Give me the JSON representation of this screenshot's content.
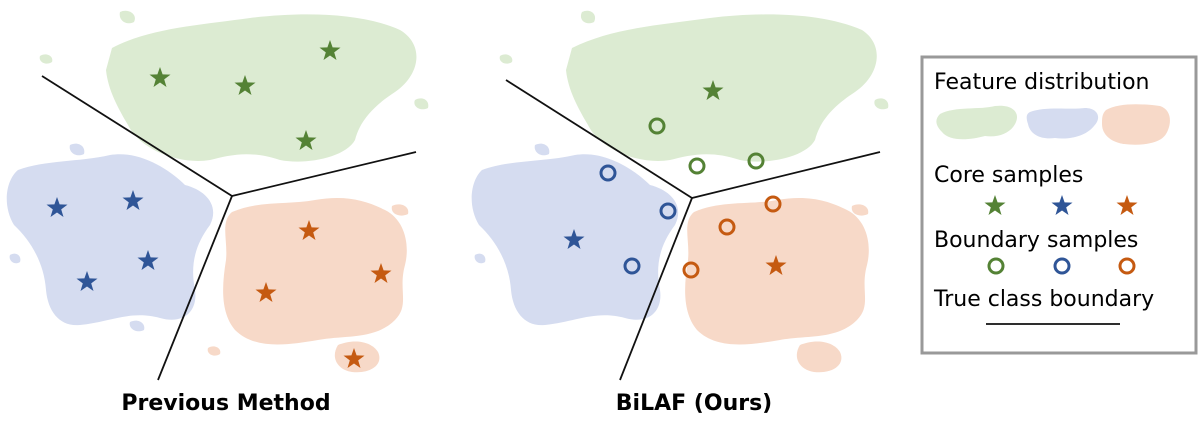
{
  "panels": [
    {
      "caption": "Previous Method",
      "core_samples": [
        "green",
        "green",
        "green",
        "green",
        "blue",
        "blue",
        "blue",
        "blue",
        "orange",
        "orange",
        "orange",
        "orange"
      ],
      "boundary_samples": []
    },
    {
      "caption": "BiLAF (Ours)",
      "core_samples": [
        "green",
        "blue",
        "orange"
      ],
      "boundary_samples": [
        "green",
        "green",
        "green",
        "blue",
        "blue",
        "blue",
        "orange",
        "orange",
        "orange"
      ]
    }
  ],
  "legend": {
    "feature_distribution": "Feature distribution",
    "core_samples": "Core samples",
    "boundary_samples": "Boundary samples",
    "true_class_boundary": "True class boundary"
  },
  "colors": {
    "green": "#548235",
    "blue": "#2f5597",
    "orange": "#c55a11",
    "green_region": "#dcebd2",
    "blue_region": "#d5dcf0",
    "orange_region": "#f7d9c8",
    "boundary_line": "#111111",
    "legend_border": "#999999"
  }
}
